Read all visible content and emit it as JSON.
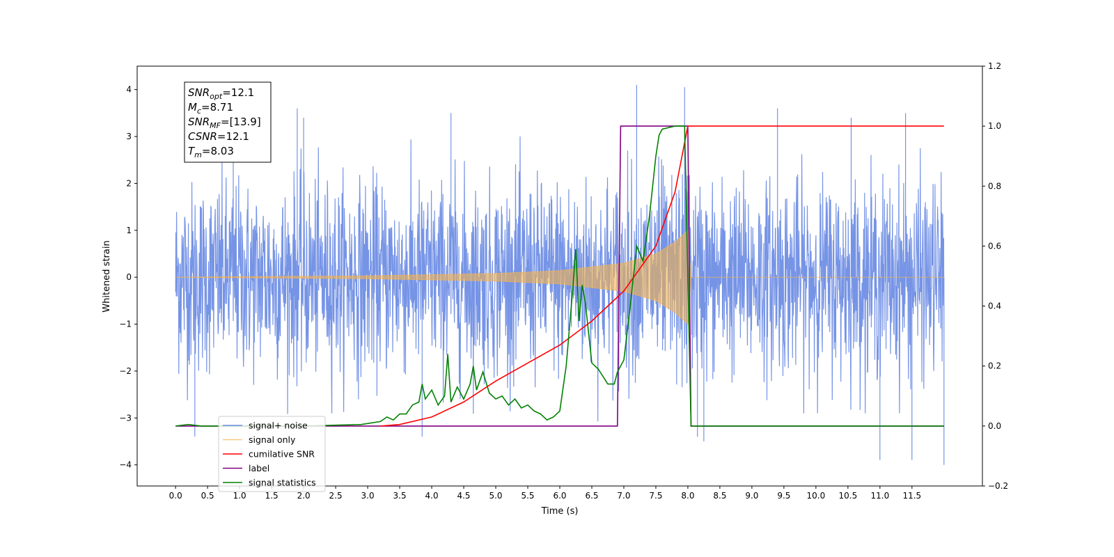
{
  "chart_data": {
    "type": "line",
    "xlabel": "Time (s)",
    "ylabel": "Whitened strain",
    "xlim": [
      -0.6,
      12.6
    ],
    "ylim": [
      -4.45,
      4.5
    ],
    "y2lim": [
      -0.2,
      1.2
    ],
    "x_ticks": [
      "0.0",
      "0.5",
      "1.0",
      "1.5",
      "2.0",
      "2.5",
      "3.0",
      "3.5",
      "4.0",
      "4.5",
      "5.0",
      "5.5",
      "6.0",
      "6.5",
      "7.0",
      "7.5",
      "8.0",
      "8.5",
      "9.0",
      "9.5",
      "10.0",
      "10.5",
      "11.0",
      "11.5"
    ],
    "y_ticks": [
      "4",
      "3",
      "2",
      "1",
      "0",
      "−1",
      "−2",
      "−3",
      "−4"
    ],
    "y2_ticks": [
      "1.2",
      "1.0",
      "0.8",
      "0.6",
      "0.4",
      "0.2",
      "0.0",
      "−0.2"
    ],
    "annotation": [
      {
        "sym": "SNR",
        "sub": "opt",
        "val": "=12.1"
      },
      {
        "sym": "M",
        "sub": "c",
        "val": "=8.71"
      },
      {
        "sym": "SNR",
        "sub": "MF",
        "val": "=[13.9]"
      },
      {
        "sym": "CSNR",
        "sub": "",
        "val": "=12.1"
      },
      {
        "sym": "T",
        "sub": "m",
        "val": "=8.03"
      }
    ],
    "legend_placement": "lower left",
    "series": [
      {
        "name": "signal+ noise",
        "axis": "left",
        "color": "#6f8ee5",
        "description": "whitened noise plus chirp, amplitude mostly within ±2.5, peaks to about ±4",
        "x_range": [
          0.0,
          12.0
        ],
        "noise_sigma": 1.0,
        "peaks": [
          [
            0.9,
            3.4
          ],
          [
            1.9,
            3.6
          ],
          [
            2.0,
            3.4
          ],
          [
            4.3,
            3.5
          ],
          [
            7.2,
            4.1
          ],
          [
            7.95,
            4.05
          ],
          [
            9.4,
            3.6
          ],
          [
            10.55,
            3.4
          ],
          [
            11.4,
            3.5
          ],
          [
            11.0,
            -3.9
          ],
          [
            11.5,
            -3.9
          ],
          [
            12.0,
            -4.0
          ],
          [
            0.3,
            -3.4
          ],
          [
            3.85,
            -3.4
          ],
          [
            8.15,
            -3.4
          ],
          [
            8.25,
            -3.5
          ]
        ]
      },
      {
        "name": "signal only",
        "axis": "left",
        "color": "#f5b34d",
        "description": "chirp envelope growing to about ±1 near merger at t≈8.0 s, then zero",
        "envelope": [
          [
            0.0,
            0.0
          ],
          [
            3.0,
            0.03
          ],
          [
            5.0,
            0.08
          ],
          [
            6.0,
            0.14
          ],
          [
            7.0,
            0.3
          ],
          [
            7.5,
            0.5
          ],
          [
            7.8,
            0.75
          ],
          [
            8.0,
            1.0
          ],
          [
            8.05,
            0.0
          ],
          [
            12.0,
            0.0
          ]
        ]
      },
      {
        "name": "cumilative SNR",
        "axis": "right",
        "color": "#ff0000",
        "points": [
          [
            3.2,
            0.0
          ],
          [
            3.5,
            0.005
          ],
          [
            4.0,
            0.03
          ],
          [
            4.5,
            0.08
          ],
          [
            5.0,
            0.15
          ],
          [
            5.5,
            0.21
          ],
          [
            6.0,
            0.27
          ],
          [
            6.5,
            0.35
          ],
          [
            7.0,
            0.45
          ],
          [
            7.5,
            0.6
          ],
          [
            7.8,
            0.78
          ],
          [
            8.0,
            1.0
          ],
          [
            12.0,
            1.0
          ]
        ]
      },
      {
        "name": "label",
        "axis": "right",
        "color": "#800080",
        "points": [
          [
            0.0,
            0.0
          ],
          [
            6.9,
            0.0
          ],
          [
            6.95,
            1.0
          ],
          [
            8.0,
            1.0
          ],
          [
            8.05,
            0.0
          ],
          [
            12.0,
            0.0
          ]
        ]
      },
      {
        "name": "signal statistics",
        "axis": "right",
        "color": "#008000",
        "points": [
          [
            0.0,
            0.0
          ],
          [
            0.2,
            0.005
          ],
          [
            0.4,
            0.0
          ],
          [
            1.0,
            0.0
          ],
          [
            2.0,
            0.0
          ],
          [
            2.9,
            0.005
          ],
          [
            3.2,
            0.015
          ],
          [
            3.3,
            0.03
          ],
          [
            3.4,
            0.02
          ],
          [
            3.5,
            0.04
          ],
          [
            3.6,
            0.04
          ],
          [
            3.7,
            0.07
          ],
          [
            3.8,
            0.08
          ],
          [
            3.85,
            0.14
          ],
          [
            3.9,
            0.09
          ],
          [
            4.0,
            0.12
          ],
          [
            4.1,
            0.07
          ],
          [
            4.2,
            0.1
          ],
          [
            4.25,
            0.24
          ],
          [
            4.3,
            0.08
          ],
          [
            4.4,
            0.13
          ],
          [
            4.5,
            0.09
          ],
          [
            4.6,
            0.14
          ],
          [
            4.65,
            0.2
          ],
          [
            4.7,
            0.12
          ],
          [
            4.8,
            0.18
          ],
          [
            4.9,
            0.11
          ],
          [
            5.0,
            0.09
          ],
          [
            5.1,
            0.1
          ],
          [
            5.2,
            0.07
          ],
          [
            5.3,
            0.09
          ],
          [
            5.4,
            0.06
          ],
          [
            5.5,
            0.07
          ],
          [
            5.6,
            0.05
          ],
          [
            5.7,
            0.04
          ],
          [
            5.8,
            0.02
          ],
          [
            5.9,
            0.03
          ],
          [
            6.0,
            0.05
          ],
          [
            6.1,
            0.2
          ],
          [
            6.2,
            0.45
          ],
          [
            6.25,
            0.59
          ],
          [
            6.3,
            0.35
          ],
          [
            6.35,
            0.47
          ],
          [
            6.4,
            0.41
          ],
          [
            6.5,
            0.21
          ],
          [
            6.6,
            0.19
          ],
          [
            6.75,
            0.14
          ],
          [
            6.85,
            0.14
          ],
          [
            6.9,
            0.18
          ],
          [
            7.0,
            0.22
          ],
          [
            7.1,
            0.4
          ],
          [
            7.2,
            0.6
          ],
          [
            7.3,
            0.55
          ],
          [
            7.4,
            0.7
          ],
          [
            7.5,
            0.9
          ],
          [
            7.55,
            0.97
          ],
          [
            7.6,
            0.99
          ],
          [
            7.8,
            1.0
          ],
          [
            7.95,
            1.0
          ],
          [
            8.05,
            0.0
          ],
          [
            12.0,
            0.0
          ]
        ]
      }
    ]
  }
}
